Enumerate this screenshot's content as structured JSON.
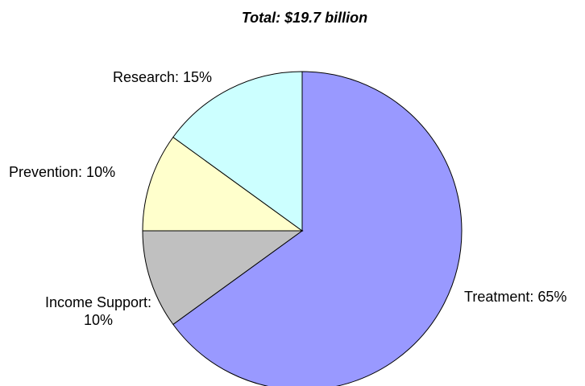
{
  "chart_data": {
    "type": "pie",
    "title": "Total: $19.7 billion",
    "start_angle_deg": 0,
    "direction": "clockwise",
    "slices": [
      {
        "name": "Treatment",
        "value": 65,
        "label_lines": [
          "Treatment: 65%"
        ],
        "color": "#9999ff"
      },
      {
        "name": "Income Support",
        "value": 10,
        "label_lines": [
          "Income Support:",
          "10%"
        ],
        "color": "#c0c0c0"
      },
      {
        "name": "Prevention",
        "value": 10,
        "label_lines": [
          "Prevention: 10%"
        ],
        "color": "#ffffcc"
      },
      {
        "name": "Research",
        "value": 15,
        "label_lines": [
          "Research: 15%"
        ],
        "color": "#ccffff"
      }
    ]
  }
}
